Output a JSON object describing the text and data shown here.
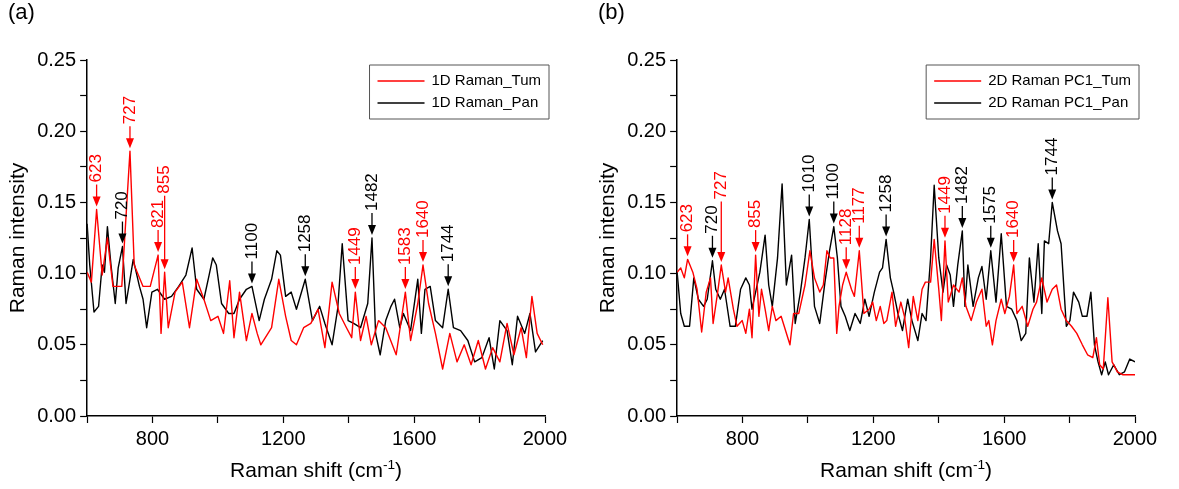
{
  "chart_data": [
    {
      "type": "line",
      "title": "(a)",
      "xlabel": "Raman shift (cm$^{-1}$)",
      "ylabel": "Raman intensity",
      "legend": "top right",
      "xlim": [
        600,
        2000
      ],
      "xticks": [
        {
          "value": 600,
          "label": null
        },
        800,
        {
          "value": 1000,
          "label": null
        },
        1200,
        {
          "value": 1400,
          "label": null
        },
        1600,
        {
          "value": 1800,
          "label": null
        },
        2000
      ],
      "ylim": [
        0,
        0.25
      ],
      "yticks": [
        {
          "value": 0,
          "label": "0.00"
        },
        {
          "value": 0.025,
          "label": null
        },
        {
          "value": 0.05,
          "label": "0.05"
        },
        {
          "value": 0.075,
          "label": null
        },
        {
          "value": 0.1,
          "label": "0.10"
        },
        {
          "value": 0.125,
          "label": null
        },
        {
          "value": 0.15,
          "label": "0.15"
        },
        {
          "value": 0.175,
          "label": null
        },
        {
          "value": 0.2,
          "label": "0.20"
        },
        {
          "value": 0.225,
          "label": null
        },
        {
          "value": 0.25,
          "label": "0.25"
        }
      ],
      "series": [
        {
          "name": "1D Raman_Tum",
          "color": "#ff0000",
          "x": [
            600,
            613,
            629,
            646,
            662,
            679,
            706,
            731,
            744,
            771,
            793,
            817,
            826,
            837,
            848,
            869,
            891,
            913,
            935,
            957,
            978,
            1000,
            1017,
            1036,
            1049,
            1066,
            1087,
            1104,
            1120,
            1131,
            1164,
            1186,
            1207,
            1224,
            1240,
            1262,
            1284,
            1306,
            1327,
            1349,
            1371,
            1393,
            1409,
            1420,
            1436,
            1453,
            1469,
            1491,
            1513,
            1545,
            1573,
            1589,
            1611,
            1627,
            1644,
            1665,
            1687,
            1709,
            1731,
            1753,
            1774,
            1796,
            1818,
            1840,
            1862,
            1884,
            1905,
            1927,
            1943,
            1960,
            1976,
            1993
          ],
          "values": [
            0.101,
            0.094,
            0.145,
            0.099,
            0.125,
            0.091,
            0.091,
            0.186,
            0.106,
            0.091,
            0.091,
            0.113,
            0.058,
            0.101,
            0.062,
            0.087,
            0.094,
            0.062,
            0.096,
            0.082,
            0.067,
            0.07,
            0.058,
            0.095,
            0.055,
            0.087,
            0.053,
            0.072,
            0.058,
            0.05,
            0.062,
            0.096,
            0.07,
            0.053,
            0.05,
            0.062,
            0.065,
            0.075,
            0.048,
            0.094,
            0.072,
            0.062,
            0.055,
            0.087,
            0.053,
            0.07,
            0.05,
            0.067,
            0.062,
            0.043,
            0.087,
            0.053,
            0.079,
            0.106,
            0.079,
            0.058,
            0.033,
            0.058,
            0.038,
            0.05,
            0.036,
            0.053,
            0.033,
            0.048,
            0.038,
            0.065,
            0.043,
            0.062,
            0.041,
            0.084,
            0.058,
            0.05
          ]
        },
        {
          "name": "1D Raman_Pan",
          "color": "#000000",
          "x": [
            600,
            608,
            621,
            635,
            646,
            653,
            662,
            673,
            686,
            695,
            708,
            719,
            741,
            760,
            771,
            782,
            798,
            815,
            837,
            858,
            880,
            902,
            921,
            935,
            957,
            973,
            984,
            995,
            1011,
            1033,
            1049,
            1066,
            1087,
            1104,
            1126,
            1142,
            1164,
            1180,
            1191,
            1207,
            1224,
            1240,
            1267,
            1289,
            1311,
            1327,
            1349,
            1366,
            1380,
            1398,
            1415,
            1436,
            1458,
            1471,
            1482,
            1496,
            1513,
            1529,
            1540,
            1556,
            1567,
            1589,
            1611,
            1622,
            1633,
            1649,
            1665,
            1687,
            1704,
            1720,
            1742,
            1764,
            1785,
            1807,
            1829,
            1845,
            1862,
            1884,
            1900,
            1916,
            1938,
            1954,
            1971,
            1993
          ],
          "values": [
            0.135,
            0.106,
            0.073,
            0.077,
            0.106,
            0.101,
            0.133,
            0.106,
            0.079,
            0.104,
            0.119,
            0.079,
            0.11,
            0.091,
            0.082,
            0.062,
            0.087,
            0.089,
            0.082,
            0.084,
            0.091,
            0.099,
            0.118,
            0.089,
            0.082,
            0.099,
            0.111,
            0.106,
            0.079,
            0.072,
            0.072,
            0.082,
            0.089,
            0.091,
            0.067,
            0.082,
            0.096,
            0.116,
            0.113,
            0.084,
            0.087,
            0.075,
            0.096,
            0.067,
            0.077,
            0.065,
            0.05,
            0.075,
            0.121,
            0.067,
            0.065,
            0.062,
            0.079,
            0.125,
            0.058,
            0.043,
            0.067,
            0.077,
            0.082,
            0.062,
            0.072,
            0.06,
            0.096,
            0.058,
            0.089,
            0.091,
            0.067,
            0.062,
            0.089,
            0.062,
            0.06,
            0.053,
            0.038,
            0.041,
            0.055,
            0.033,
            0.067,
            0.06,
            0.036,
            0.07,
            0.058,
            0.072,
            0.045,
            0.053
          ]
        }
      ],
      "annotations": [
        {
          "text": "623",
          "x": 629,
          "y": 0.145
        },
        {
          "text": "720",
          "x": 708,
          "y": 0.119
        },
        {
          "text": "727",
          "x": 731,
          "y": 0.186
        },
        {
          "text": "821",
          "x": 817,
          "y": 0.113
        },
        {
          "text": "855",
          "x": 837,
          "y": 0.101
        },
        {
          "text": "1100",
          "x": 1104,
          "y": 0.091
        },
        {
          "text": "1258",
          "x": 1267,
          "y": 0.096
        },
        {
          "text": "1449",
          "x": 1420,
          "y": 0.087
        },
        {
          "text": "1482",
          "x": 1471,
          "y": 0.125
        },
        {
          "text": "1583",
          "x": 1573,
          "y": 0.087
        },
        {
          "text": "1640",
          "x": 1627,
          "y": 0.106
        },
        {
          "text": "1744",
          "x": 1704,
          "y": 0.089
        }
      ]
    },
    {
      "type": "line",
      "title": "(b)",
      "xlabel": "Raman shift (cm$^{-1}$)",
      "ylabel": "Raman intensity",
      "legend": "top right",
      "xlim": [
        600,
        2000
      ],
      "xticks": [
        {
          "value": 600,
          "label": null
        },
        800,
        {
          "value": 1000,
          "label": null
        },
        1200,
        {
          "value": 1400,
          "label": null
        },
        1600,
        {
          "value": 1800,
          "label": null
        },
        2000
      ],
      "ylim": [
        0,
        0.25
      ],
      "yticks": [
        {
          "value": 0,
          "label": "0.00"
        },
        {
          "value": 0.025,
          "label": null
        },
        {
          "value": 0.05,
          "label": "0.05"
        },
        {
          "value": 0.075,
          "label": null
        },
        {
          "value": 0.1,
          "label": "0.10"
        },
        {
          "value": 0.125,
          "label": null
        },
        {
          "value": 0.15,
          "label": "0.15"
        },
        {
          "value": 0.175,
          "label": null
        },
        {
          "value": 0.2,
          "label": "0.20"
        },
        {
          "value": 0.225,
          "label": null
        },
        {
          "value": 0.25,
          "label": "0.25"
        }
      ],
      "series": [
        {
          "name": "2D Raman PC1_Tum",
          "color": "#ff0000",
          "x": [
            600,
            611,
            622,
            632,
            648,
            661,
            675,
            689,
            702,
            710,
            724,
            735,
            748,
            756,
            772,
            783,
            799,
            810,
            821,
            829,
            840,
            850,
            858,
            869,
            880,
            891,
            902,
            918,
            945,
            956,
            972,
            991,
            1006,
            1020,
            1036,
            1047,
            1058,
            1068,
            1079,
            1088,
            1095,
            1106,
            1117,
            1133,
            1142,
            1157,
            1171,
            1187,
            1198,
            1209,
            1221,
            1232,
            1241,
            1257,
            1268,
            1284,
            1295,
            1308,
            1322,
            1336,
            1349,
            1359,
            1375,
            1386,
            1400,
            1408,
            1419,
            1429,
            1445,
            1462,
            1472,
            1483,
            1499,
            1515,
            1532,
            1545,
            1553,
            1564,
            1575,
            1591,
            1602,
            1616,
            1629,
            1639,
            1655,
            1672,
            1688,
            1699,
            1715,
            1731,
            1747,
            1760,
            1774,
            1790,
            1806,
            1822,
            1839,
            1855,
            1871,
            1882,
            1892,
            1903,
            1917,
            1930,
            1946,
            1962,
            1979,
            2000
          ],
          "values": [
            0.101,
            0.104,
            0.097,
            0.11,
            0.101,
            0.089,
            0.059,
            0.087,
            0.097,
            0.065,
            0.087,
            0.106,
            0.087,
            0.097,
            0.075,
            0.063,
            0.067,
            0.058,
            0.075,
            0.055,
            0.113,
            0.07,
            0.089,
            0.075,
            0.06,
            0.077,
            0.067,
            0.07,
            0.05,
            0.072,
            0.072,
            0.092,
            0.116,
            0.097,
            0.087,
            0.092,
            0.116,
            0.111,
            0.111,
            0.058,
            0.077,
            0.092,
            0.101,
            0.089,
            0.084,
            0.116,
            0.072,
            0.075,
            0.08,
            0.067,
            0.077,
            0.065,
            0.067,
            0.087,
            0.063,
            0.08,
            0.07,
            0.048,
            0.084,
            0.067,
            0.089,
            0.094,
            0.094,
            0.124,
            0.089,
            0.067,
            0.123,
            0.08,
            0.092,
            0.087,
            0.097,
            0.077,
            0.067,
            0.08,
            0.089,
            0.063,
            0.067,
            0.05,
            0.067,
            0.082,
            0.072,
            0.084,
            0.106,
            0.072,
            0.077,
            0.063,
            0.075,
            0.08,
            0.097,
            0.08,
            0.089,
            0.092,
            0.075,
            0.067,
            0.063,
            0.058,
            0.05,
            0.043,
            0.041,
            0.055,
            0.036,
            0.033,
            0.083,
            0.038,
            0.031,
            0.029,
            0.029,
            0.029
          ]
        },
        {
          "name": "2D Raman PC1_Pan",
          "color": "#000000",
          "x": [
            600,
            611,
            622,
            638,
            651,
            665,
            681,
            692,
            708,
            718,
            732,
            745,
            762,
            778,
            794,
            810,
            821,
            829,
            840,
            853,
            869,
            880,
            891,
            907,
            921,
            934,
            950,
            961,
            977,
            991,
            1004,
            1020,
            1036,
            1052,
            1066,
            1079,
            1090,
            1101,
            1114,
            1128,
            1144,
            1160,
            1174,
            1187,
            1203,
            1219,
            1228,
            1239,
            1252,
            1262,
            1275,
            1289,
            1305,
            1318,
            1336,
            1349,
            1361,
            1375,
            1386,
            1400,
            1413,
            1424,
            1435,
            1445,
            1458,
            1472,
            1480,
            1489,
            1505,
            1521,
            1532,
            1545,
            1559,
            1575,
            1591,
            1607,
            1623,
            1639,
            1652,
            1666,
            1677,
            1691,
            1704,
            1715,
            1723,
            1736,
            1747,
            1763,
            1774,
            1790,
            1801,
            1812,
            1828,
            1839,
            1853,
            1865,
            1876,
            1887,
            1898,
            1909,
            1919,
            1935,
            1952,
            1968,
            1984,
            2000
          ],
          "values": [
            0.101,
            0.072,
            0.063,
            0.063,
            0.097,
            0.082,
            0.077,
            0.082,
            0.109,
            0.089,
            0.082,
            0.089,
            0.063,
            0.063,
            0.089,
            0.097,
            0.092,
            0.075,
            0.087,
            0.101,
            0.127,
            0.092,
            0.077,
            0.111,
            0.163,
            0.092,
            0.113,
            0.065,
            0.087,
            0.111,
            0.138,
            0.077,
            0.065,
            0.094,
            0.116,
            0.133,
            0.111,
            0.077,
            0.07,
            0.06,
            0.072,
            0.065,
            0.082,
            0.07,
            0.087,
            0.101,
            0.104,
            0.124,
            0.097,
            0.087,
            0.072,
            0.06,
            0.082,
            0.067,
            0.053,
            0.072,
            0.067,
            0.111,
            0.162,
            0.111,
            0.087,
            0.106,
            0.099,
            0.077,
            0.106,
            0.13,
            0.077,
            0.106,
            0.077,
            0.097,
            0.105,
            0.082,
            0.116,
            0.08,
            0.128,
            0.077,
            0.075,
            0.067,
            0.053,
            0.058,
            0.111,
            0.08,
            0.121,
            0.072,
            0.123,
            0.121,
            0.15,
            0.13,
            0.121,
            0.063,
            0.067,
            0.087,
            0.08,
            0.07,
            0.07,
            0.087,
            0.05,
            0.038,
            0.029,
            0.038,
            0.029,
            0.036,
            0.029,
            0.031,
            0.04,
            0.038
          ]
        }
      ],
      "annotations": [
        {
          "text": "623",
          "x": 632,
          "y": 0.11
        },
        {
          "text": "720",
          "x": 708,
          "y": 0.109
        },
        {
          "text": "727",
          "x": 735,
          "y": 0.106
        },
        {
          "text": "855",
          "x": 840,
          "y": 0.113
        },
        {
          "text": "1010",
          "x": 1004,
          "y": 0.138
        },
        {
          "text": "1100",
          "x": 1079,
          "y": 0.133
        },
        {
          "text": "1128",
          "x": 1117,
          "y": 0.101
        },
        {
          "text": "1177",
          "x": 1157,
          "y": 0.116
        },
        {
          "text": "1258",
          "x": 1239,
          "y": 0.124
        },
        {
          "text": "1449",
          "x": 1419,
          "y": 0.123
        },
        {
          "text": "1482",
          "x": 1472,
          "y": 0.13
        },
        {
          "text": "1575",
          "x": 1559,
          "y": 0.116
        },
        {
          "text": "1640",
          "x": 1629,
          "y": 0.106
        },
        {
          "text": "1744",
          "x": 1747,
          "y": 0.15
        }
      ]
    }
  ]
}
